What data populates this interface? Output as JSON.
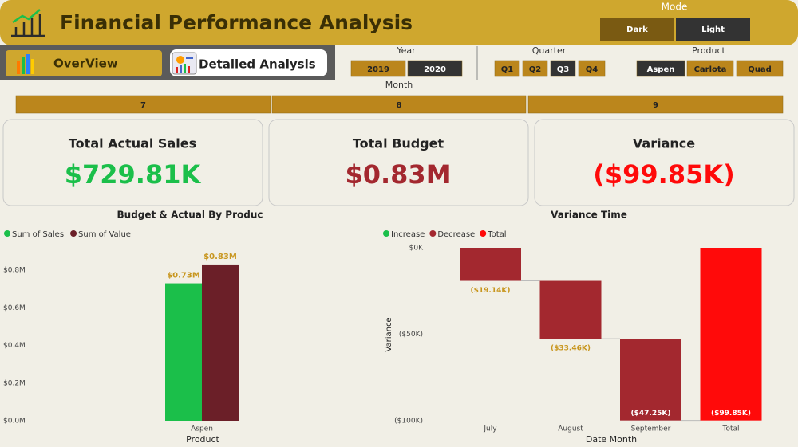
{
  "header": {
    "title": "Financial Performance Analysis"
  },
  "mode": {
    "label": "Mode",
    "options": [
      "Dark",
      "Light"
    ],
    "selected": 1
  },
  "nav": {
    "tabs": [
      "OverView",
      "Detailed Analysis"
    ]
  },
  "filters": [
    {
      "label": "Year",
      "options": [
        "2019",
        "2020"
      ],
      "selected": 1
    },
    {
      "label": "Quarter",
      "options": [
        "Q1",
        "Q2",
        "Q3",
        "Q4"
      ],
      "selected": 2
    },
    {
      "label": "Product",
      "options": [
        "Aspen",
        "Carlota",
        "Quad"
      ],
      "selected": 0
    },
    {
      "label": "Month",
      "options": [
        "7",
        "8",
        "9"
      ]
    }
  ],
  "kpis": [
    {
      "title": "Total Actual Sales",
      "value": "$729.81K",
      "color": "#1bbf4a"
    },
    {
      "title": "Total Budget",
      "value": "$0.83M",
      "color": "#a3282f"
    },
    {
      "title": "Variance",
      "value": "($99.85K)",
      "color": "#ff0a0a"
    }
  ],
  "chart_data": [
    {
      "type": "bar",
      "title": "Budget & Actual By Produc",
      "x_label": "Product",
      "categories": [
        "Aspen"
      ],
      "series": [
        {
          "name": "Sum of Sales",
          "color": "#1bbf4a",
          "values": [
            730000
          ],
          "value_labels": [
            "$0.73M"
          ]
        },
        {
          "name": "Sum of Value",
          "color": "#6b1f28",
          "values": [
            830000
          ],
          "value_labels": [
            "$0.83M"
          ]
        }
      ],
      "ylim": [
        0,
        900000
      ],
      "yticks": [
        {
          "value": 0,
          "label": "$0.0M"
        },
        {
          "value": 200000,
          "label": "$0.2M"
        },
        {
          "value": 400000,
          "label": "$0.4M"
        },
        {
          "value": 600000,
          "label": "$0.6M"
        },
        {
          "value": 800000,
          "label": "$0.8M"
        }
      ]
    },
    {
      "type": "waterfall",
      "title": "Variance Time",
      "x_label": "Date Month",
      "y_label": "Variance",
      "legend": [
        {
          "name": "Increase",
          "color": "#1bbf4a"
        },
        {
          "name": "Decrease",
          "color": "#a3282f"
        },
        {
          "name": "Total",
          "color": "#ff0a0a"
        }
      ],
      "categories": [
        "July",
        "August",
        "September",
        "Total"
      ],
      "values": [
        -19140,
        -33460,
        -47250,
        -99850
      ],
      "value_labels": [
        "($19.14K)",
        "($33.46K)",
        "($47.25K)",
        "($99.85K)"
      ],
      "ylim": [
        -100000,
        0
      ],
      "yticks": [
        {
          "value": 0,
          "label": "$0K"
        },
        {
          "value": -50000,
          "label": "($50K)"
        },
        {
          "value": -100000,
          "label": "($100K)"
        }
      ]
    }
  ]
}
